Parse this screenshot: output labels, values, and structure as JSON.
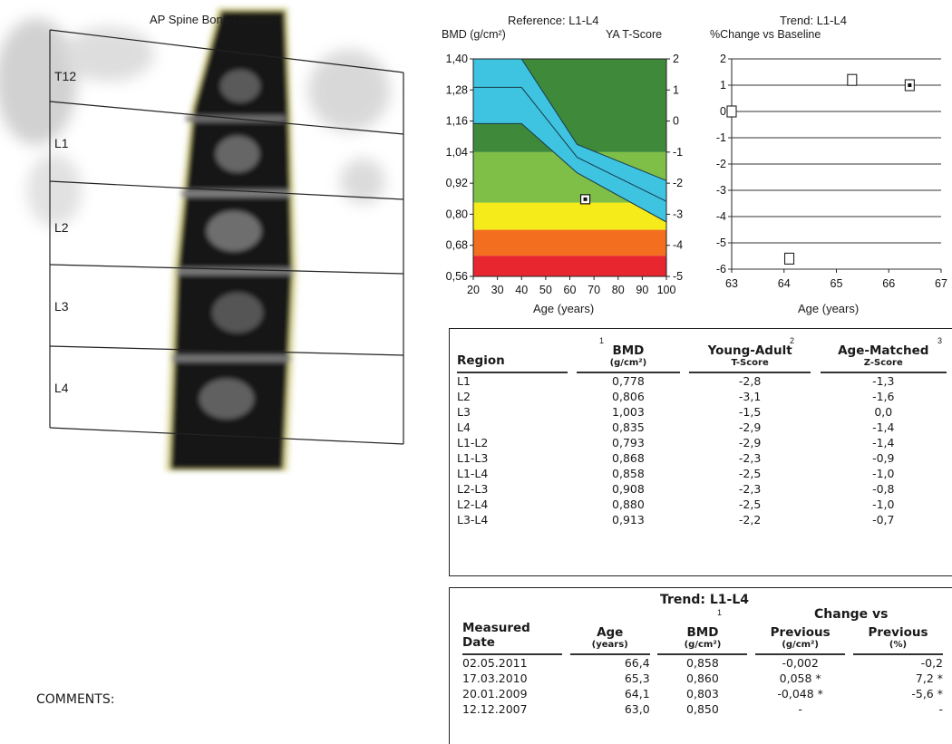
{
  "scan": {
    "title": "AP Spine Bone Density",
    "vertebrae": [
      "T12",
      "L1",
      "L2",
      "L3",
      "L4"
    ]
  },
  "comments_label": "COMMENTS:",
  "reference_chart": {
    "title": "Reference: L1-L4",
    "left_axis_label": "BMD (g/cm²)",
    "right_axis_label": "YA T-Score",
    "x_axis_label": "Age (years)",
    "x_ticks": [
      "20",
      "30",
      "40",
      "50",
      "60",
      "70",
      "80",
      "90",
      "100"
    ],
    "y_ticks_left": [
      "1,40",
      "1,28",
      "1,16",
      "1,04",
      "0,92",
      "0,80",
      "0,68",
      "0,56"
    ],
    "y_ticks_right": [
      "2",
      "1",
      "0",
      "-1",
      "-2",
      "-3",
      "-4",
      "-5"
    ],
    "colors": {
      "red": "#e8262f",
      "orange": "#f36f1f",
      "yellow": "#f5ea1a",
      "green": "#7fbf48",
      "dark_green": "#3e8a3a",
      "band": "#3ec3e0"
    }
  },
  "trend_chart": {
    "title": "Trend: L1-L4",
    "subtitle": "%Change vs Baseline",
    "x_axis_label": "Age (years)",
    "x_ticks": [
      "63",
      "64",
      "65",
      "66",
      "67"
    ],
    "y_ticks": [
      "2",
      "1",
      "0",
      "-1",
      "-2",
      "-3",
      "-4",
      "-5",
      "-6"
    ]
  },
  "chart_data": [
    {
      "type": "scatter",
      "title": "Reference: L1-L4",
      "xlabel": "Age (years)",
      "ylabel": "BMD (g/cm²)",
      "xlim": [
        20,
        100
      ],
      "ylim": [
        0.56,
        1.4
      ],
      "y2label": "YA T-Score",
      "y2lim": [
        -5,
        2
      ],
      "x": [
        66.4
      ],
      "y": [
        0.858
      ]
    },
    {
      "type": "scatter",
      "title": "Trend: L1-L4",
      "ylabel": "%Change vs Baseline",
      "xlabel": "Age (years)",
      "xlim": [
        63,
        67
      ],
      "ylim": [
        -6,
        2
      ],
      "x": [
        63.0,
        64.1,
        65.3,
        66.4
      ],
      "y": [
        0.0,
        -5.6,
        1.2,
        1.0
      ]
    }
  ],
  "results_table": {
    "headers": {
      "region": "Region",
      "bmd": "BMD",
      "bmd_unit": "(g/cm²)",
      "bmd_sup": "1",
      "ya": "Young-Adult",
      "ya_unit": "T-Score",
      "ya_sup": "2",
      "am": "Age-Matched",
      "am_unit": "Z-Score",
      "am_sup": "3"
    },
    "rows": [
      {
        "region": "L1",
        "bmd": "0,778",
        "t": "-2,8",
        "z": "-1,3"
      },
      {
        "region": "L2",
        "bmd": "0,806",
        "t": "-3,1",
        "z": "-1,6"
      },
      {
        "region": "L3",
        "bmd": "1,003",
        "t": "-1,5",
        "z": "0,0"
      },
      {
        "region": "L4",
        "bmd": "0,835",
        "t": "-2,9",
        "z": "-1,4"
      },
      {
        "region": "L1-L2",
        "bmd": "0,793",
        "t": "-2,9",
        "z": "-1,4"
      },
      {
        "region": "L1-L3",
        "bmd": "0,868",
        "t": "-2,3",
        "z": "-0,9"
      },
      {
        "region": "L1-L4",
        "bmd": "0,858",
        "t": "-2,5",
        "z": "-1,0"
      },
      {
        "region": "L2-L3",
        "bmd": "0,908",
        "t": "-2,3",
        "z": "-0,8"
      },
      {
        "region": "L2-L4",
        "bmd": "0,880",
        "t": "-2,5",
        "z": "-1,0"
      },
      {
        "region": "L3-L4",
        "bmd": "0,913",
        "t": "-2,2",
        "z": "-0,7"
      }
    ]
  },
  "trend_table": {
    "title": "Trend: L1-L4",
    "change_title": "Change vs",
    "headers": {
      "date_line1": "Measured",
      "date_line2": "Date",
      "age": "Age",
      "age_unit": "(years)",
      "bmd": "BMD",
      "bmd_unit": "(g/cm²)",
      "bmd_sup": "1",
      "prev_g": "Previous",
      "prev_g_unit": "(g/cm²)",
      "prev_pct": "Previous",
      "prev_pct_unit": "(%)"
    },
    "rows": [
      {
        "date": "02.05.2011",
        "age": "66,4",
        "bmd": "0,858",
        "chg_g": "-0,002",
        "chg_pct": "-0,2"
      },
      {
        "date": "17.03.2010",
        "age": "65,3",
        "bmd": "0,860",
        "chg_g": "0,058 *",
        "chg_pct": "7,2 *"
      },
      {
        "date": "20.01.2009",
        "age": "64,1",
        "bmd": "0,803",
        "chg_g": "-0,048 *",
        "chg_pct": "-5,6 *"
      },
      {
        "date": "12.12.2007",
        "age": "63,0",
        "bmd": "0,850",
        "chg_g": "-",
        "chg_pct": "-"
      }
    ]
  }
}
